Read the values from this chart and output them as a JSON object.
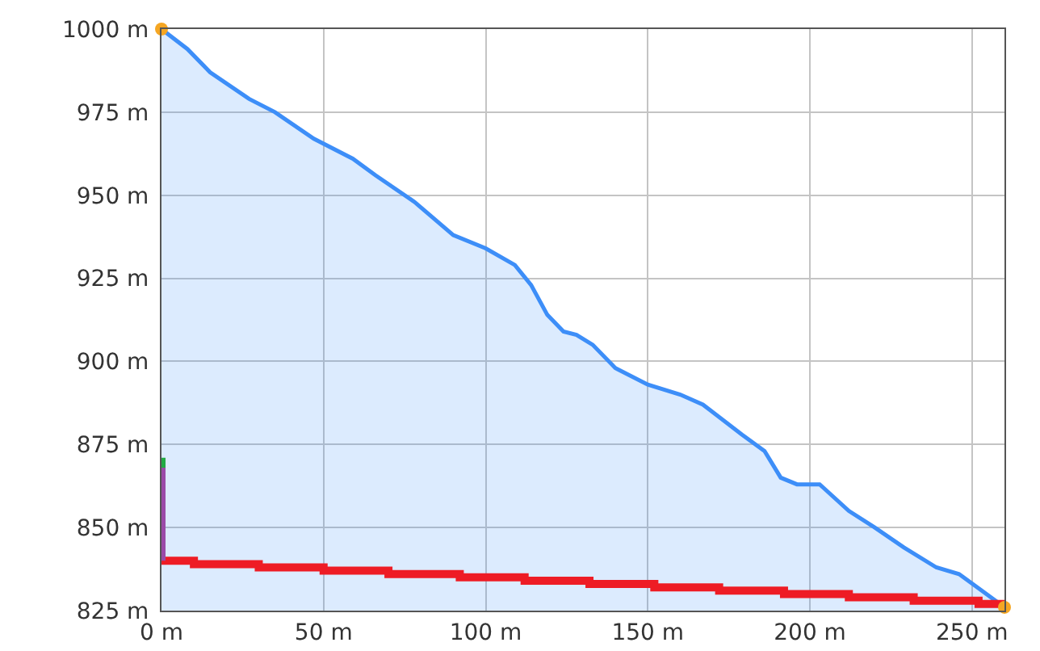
{
  "chart_data": {
    "type": "area",
    "xlim": [
      0,
      260
    ],
    "ylim": [
      825,
      1000
    ],
    "xticks": [
      {
        "value": 0,
        "label": "0 m"
      },
      {
        "value": 50,
        "label": "50 m"
      },
      {
        "value": 100,
        "label": "100 m"
      },
      {
        "value": 150,
        "label": "150 m"
      },
      {
        "value": 200,
        "label": "200 m"
      },
      {
        "value": 250,
        "label": "250 m"
      }
    ],
    "yticks": [
      {
        "value": 825,
        "label": "825 m"
      },
      {
        "value": 850,
        "label": "850 m"
      },
      {
        "value": 875,
        "label": "875 m"
      },
      {
        "value": 900,
        "label": "900 m"
      },
      {
        "value": 925,
        "label": "925 m"
      },
      {
        "value": 950,
        "label": "950 m"
      },
      {
        "value": 975,
        "label": "975 m"
      },
      {
        "value": 1000,
        "label": "1000 m"
      }
    ],
    "grid": true,
    "legend": false,
    "series": [
      {
        "color": "#3d8ef8",
        "x": [
          0,
          8,
          15,
          27,
          35,
          47,
          59,
          66,
          78,
          90,
          100,
          109,
          114,
          119,
          124,
          128,
          133,
          140,
          150,
          160,
          167,
          179,
          186,
          191,
          196,
          203,
          212,
          220,
          229,
          239,
          246,
          253,
          260
        ],
        "values": [
          1000,
          994,
          987,
          979,
          975,
          967,
          961,
          956,
          948,
          938,
          934,
          929,
          923,
          914,
          909,
          908,
          905,
          898,
          893,
          890,
          887,
          878,
          873,
          865,
          863,
          863,
          855,
          850,
          844,
          838,
          836,
          831,
          826
        ]
      },
      {
        "type": "step",
        "color": "#ee1c25",
        "x": [
          0,
          10,
          30,
          50,
          70,
          92,
          112,
          132,
          152,
          172,
          192,
          212,
          232,
          252,
          260
        ],
        "values": [
          840,
          839,
          838,
          837,
          836,
          835,
          834,
          833,
          832,
          831,
          830,
          829,
          828,
          827,
          827
        ]
      },
      {
        "type": "line",
        "color": "#9b4aa8",
        "x": [
          0,
          0
        ],
        "values": [
          840,
          868
        ]
      },
      {
        "type": "line",
        "color": "#22aa44",
        "x": [
          0,
          0
        ],
        "values": [
          868,
          871
        ]
      },
      {
        "type": "scatter",
        "color": "#f5a623",
        "x": [
          0,
          260
        ],
        "values": [
          1000,
          826
        ]
      }
    ]
  }
}
